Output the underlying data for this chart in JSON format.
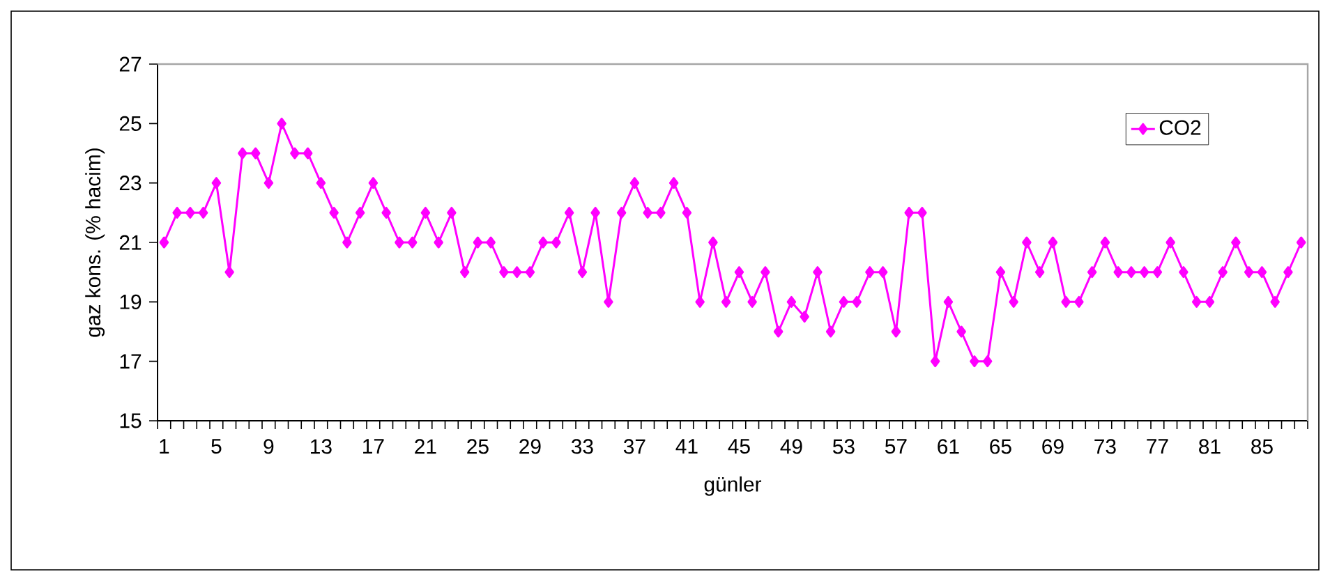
{
  "chart_data": {
    "type": "line",
    "xlabel": "günler",
    "ylabel": "gaz kons. (% hacim)",
    "categories": [
      "1",
      null,
      null,
      null,
      "5",
      null,
      null,
      null,
      "9",
      null,
      null,
      null,
      "13",
      null,
      null,
      null,
      "17",
      null,
      null,
      null,
      "21",
      null,
      null,
      null,
      "25",
      null,
      null,
      null,
      "29",
      null,
      null,
      null,
      "33",
      null,
      null,
      null,
      "37",
      null,
      null,
      null,
      "41",
      null,
      null,
      null,
      "45",
      null,
      null,
      null,
      "49",
      null,
      null,
      null,
      "53",
      null,
      null,
      null,
      "57",
      null,
      null,
      null,
      "61",
      null,
      null,
      null,
      "65",
      null,
      null,
      null,
      "69",
      null,
      null,
      null,
      "73",
      null,
      null,
      null,
      "77",
      null,
      null,
      null,
      "81",
      null,
      null,
      null,
      "85",
      null,
      null,
      null
    ],
    "series": [
      {
        "name": "CO2",
        "color": "#ff00ff",
        "values": [
          21,
          22,
          22,
          22,
          23,
          20,
          24,
          24,
          23,
          25,
          24,
          24,
          23,
          22,
          21,
          22,
          23,
          22,
          21,
          21,
          22,
          21,
          22,
          20,
          21,
          21,
          20,
          20,
          20,
          21,
          21,
          22,
          20,
          22,
          19,
          22,
          23,
          22,
          22,
          23,
          22,
          19,
          21,
          19,
          20,
          19,
          20,
          18,
          19,
          18.5,
          20,
          18,
          19,
          19,
          20,
          20,
          18,
          22,
          22,
          17,
          19,
          18,
          17,
          17,
          20,
          19,
          21,
          20,
          21,
          19,
          19,
          20,
          21,
          20,
          20,
          20,
          20,
          21,
          20,
          19,
          19,
          20,
          21,
          20,
          20,
          19,
          20,
          21
        ]
      }
    ],
    "ylim": [
      15,
      27
    ],
    "yticks": [
      15,
      17,
      19,
      21,
      23,
      25,
      27
    ],
    "legend": "top right",
    "marker": "diamond",
    "line_style": "solid"
  }
}
